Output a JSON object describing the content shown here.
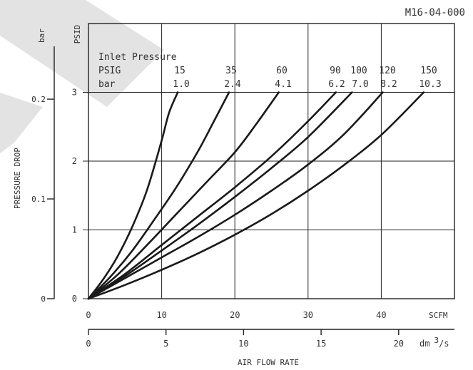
{
  "doc_id": "M16-04-000",
  "chart_data": {
    "type": "line",
    "xlabel": "AIR FLOW RATE",
    "ylabel": "PRESSURE DROP",
    "x_unit_primary": "SCFM",
    "x_unit_secondary_prefix": "dm",
    "x_unit_secondary_sup": "3",
    "x_unit_secondary_suffix": "/s",
    "y_unit_primary": "PSID",
    "y_unit_secondary": "bar",
    "xlim": [
      0,
      50
    ],
    "ylim": [
      0,
      4
    ],
    "xticks": [
      0,
      10,
      20,
      30,
      40
    ],
    "yticks": [
      0,
      1,
      2,
      3
    ],
    "x2ticks": [
      0,
      5,
      10,
      15,
      20
    ],
    "y2ticks": [
      0,
      0.1,
      0.2
    ],
    "x2_tick_labels": [
      "0",
      "5",
      "10",
      "15",
      "20"
    ],
    "y2_tick_labels": [
      "0",
      "0.1",
      "0.2"
    ],
    "grid": true,
    "legend": {
      "title": "Inlet Pressure",
      "row1_label": "PSIG",
      "row2_label": "bar",
      "psig": [
        "15",
        "35",
        "60",
        "90",
        "100",
        "120",
        "150"
      ],
      "bar": [
        "1.0",
        "2.4",
        "4.1",
        "6.2",
        "7.0",
        "8.2",
        "10.3"
      ]
    },
    "series": [
      {
        "name": "15",
        "x": [
          0,
          2,
          4,
          6,
          8,
          10,
          11,
          12.2
        ],
        "y": [
          0,
          0.28,
          0.62,
          1.05,
          1.58,
          2.3,
          2.7,
          3.0
        ]
      },
      {
        "name": "35",
        "x": [
          0,
          3,
          6,
          9,
          12,
          15,
          17,
          19.2
        ],
        "y": [
          0,
          0.32,
          0.7,
          1.15,
          1.62,
          2.15,
          2.55,
          3.0
        ]
      },
      {
        "name": "60",
        "x": [
          0,
          4,
          8,
          12,
          16,
          20,
          23,
          26
        ],
        "y": [
          0,
          0.35,
          0.78,
          1.23,
          1.68,
          2.13,
          2.55,
          3.0
        ]
      },
      {
        "name": "90",
        "x": [
          0,
          5,
          10,
          15,
          20,
          25,
          30,
          33.8
        ],
        "y": [
          0,
          0.36,
          0.78,
          1.2,
          1.62,
          2.07,
          2.58,
          3.0
        ]
      },
      {
        "name": "100",
        "x": [
          0,
          5,
          10,
          15,
          20,
          25,
          30,
          36
        ],
        "y": [
          0,
          0.33,
          0.7,
          1.08,
          1.48,
          1.9,
          2.35,
          3.0
        ]
      },
      {
        "name": "120",
        "x": [
          0,
          5,
          10,
          15,
          20,
          25,
          30,
          35,
          40.2
        ],
        "y": [
          0,
          0.3,
          0.6,
          0.9,
          1.22,
          1.57,
          1.95,
          2.4,
          3.0
        ]
      },
      {
        "name": "150",
        "x": [
          0,
          5,
          10,
          15,
          20,
          25,
          30,
          35,
          40,
          45.8
        ],
        "y": [
          0,
          0.2,
          0.42,
          0.66,
          0.93,
          1.23,
          1.57,
          1.95,
          2.38,
          3.0
        ]
      }
    ]
  }
}
